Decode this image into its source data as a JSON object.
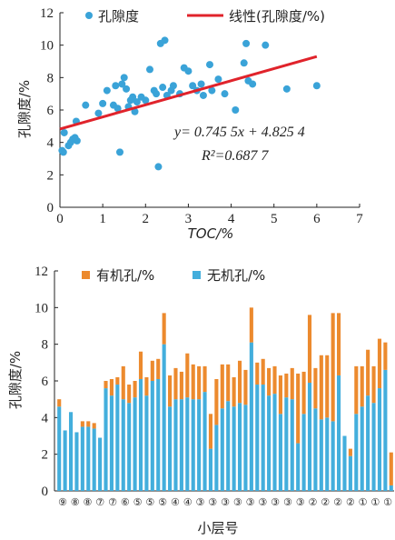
{
  "chart_data": [
    {
      "type": "scatter",
      "ylabel": "孔隙度/%",
      "xlabel": "TOC/%",
      "xlim": [
        0,
        7
      ],
      "ylim": [
        0,
        12
      ],
      "xticks": [
        "0",
        "1",
        "2",
        "3",
        "4",
        "5",
        "6",
        "7"
      ],
      "yticks": [
        "0",
        "2",
        "4",
        "6",
        "8",
        "10",
        "12"
      ],
      "legend": {
        "placement": "top",
        "items": [
          "孔隙度",
          "线性(孔隙度/%)"
        ]
      },
      "colors": {
        "points": "#3aa3d8",
        "trend": "#e0232b"
      },
      "annotation": {
        "equation": "y= 0.745 5x + 4.825 4",
        "r2": "R²=0.687 7"
      },
      "trend": {
        "slope": 0.7455,
        "intercept": 4.8254,
        "x_range": [
          0,
          6
        ]
      },
      "points": [
        [
          0.05,
          3.5
        ],
        [
          0.08,
          3.4
        ],
        [
          0.1,
          4.6
        ],
        [
          0.2,
          3.8
        ],
        [
          0.25,
          4.0
        ],
        [
          0.3,
          4.2
        ],
        [
          0.35,
          4.3
        ],
        [
          0.38,
          5.3
        ],
        [
          0.4,
          4.1
        ],
        [
          0.6,
          6.3
        ],
        [
          0.9,
          5.8
        ],
        [
          1.0,
          6.4
        ],
        [
          1.1,
          7.2
        ],
        [
          1.25,
          6.3
        ],
        [
          1.3,
          7.5
        ],
        [
          1.35,
          6.1
        ],
        [
          1.4,
          3.4
        ],
        [
          1.45,
          7.6
        ],
        [
          1.5,
          8.0
        ],
        [
          1.55,
          7.3
        ],
        [
          1.6,
          6.2
        ],
        [
          1.65,
          6.6
        ],
        [
          1.7,
          6.8
        ],
        [
          1.75,
          5.9
        ],
        [
          1.8,
          6.5
        ],
        [
          1.9,
          6.8
        ],
        [
          2.0,
          6.6
        ],
        [
          2.1,
          8.5
        ],
        [
          2.2,
          7.2
        ],
        [
          2.25,
          7.0
        ],
        [
          2.3,
          2.5
        ],
        [
          2.35,
          10.1
        ],
        [
          2.4,
          7.4
        ],
        [
          2.45,
          10.3
        ],
        [
          2.5,
          6.9
        ],
        [
          2.6,
          7.2
        ],
        [
          2.65,
          7.5
        ],
        [
          2.8,
          7.0
        ],
        [
          2.9,
          8.6
        ],
        [
          3.0,
          8.4
        ],
        [
          3.1,
          7.5
        ],
        [
          3.2,
          7.2
        ],
        [
          3.3,
          7.6
        ],
        [
          3.35,
          6.9
        ],
        [
          3.5,
          8.8
        ],
        [
          3.55,
          7.2
        ],
        [
          3.7,
          7.9
        ],
        [
          3.85,
          7.0
        ],
        [
          4.1,
          6.0
        ],
        [
          4.3,
          8.9
        ],
        [
          4.35,
          10.1
        ],
        [
          4.4,
          7.8
        ],
        [
          4.5,
          7.6
        ],
        [
          4.8,
          10.0
        ],
        [
          5.3,
          7.3
        ],
        [
          6.0,
          7.5
        ]
      ]
    },
    {
      "type": "bar",
      "stacked": true,
      "ylabel": "孔隙度/%",
      "xlabel": "小层号",
      "ylim": [
        0,
        12
      ],
      "yticks": [
        "0",
        "2",
        "4",
        "6",
        "8",
        "10",
        "12"
      ],
      "legend": {
        "placement": "top",
        "items": [
          "有机孔/%",
          "无机孔/%"
        ]
      },
      "colors": {
        "organic": "#ec8a2e",
        "inorganic": "#43aedc"
      },
      "category_labels": [
        "⑨",
        "⑧",
        "⑧",
        "⑦",
        "⑦",
        "⑥",
        "⑤",
        "⑤",
        "⑤",
        "④",
        "④",
        "③",
        "③",
        "③",
        "③",
        "③",
        "③",
        "③",
        "③",
        "③",
        "②",
        "②",
        "②",
        "②",
        "①",
        "①",
        "①"
      ],
      "series": [
        {
          "name": "无机孔/%",
          "values": [
            4.6,
            3.3,
            4.3,
            3.2,
            3.5,
            3.5,
            3.4,
            2.9,
            5.6,
            5.2,
            5.8,
            5.0,
            4.8,
            5.1,
            6.1,
            5.2,
            6.0,
            6.1,
            8.0,
            4.6,
            5.0,
            5.0,
            5.1,
            5.0,
            5.0,
            5.4,
            2.3,
            3.6,
            4.5,
            4.9,
            4.6,
            4.8,
            4.7,
            8.1,
            5.8,
            5.8,
            5.2,
            5.3,
            4.2,
            5.1,
            5.0,
            2.6,
            4.2,
            5.9,
            4.5,
            3.9,
            4.0,
            3.8,
            6.3,
            3.0,
            1.9,
            4.2,
            4.6,
            5.2,
            4.8,
            5.6,
            6.6,
            0.3
          ]
        },
        {
          "name": "有机孔/%",
          "values": [
            0.4,
            0.0,
            0.0,
            0.0,
            0.3,
            0.3,
            0.3,
            0.0,
            0.4,
            0.9,
            0.4,
            1.8,
            1.0,
            0.9,
            1.5,
            1.0,
            1.1,
            1.1,
            1.7,
            1.7,
            1.7,
            1.5,
            2.4,
            1.9,
            1.8,
            1.4,
            1.9,
            2.5,
            2.4,
            2.0,
            1.6,
            2.3,
            1.9,
            1.9,
            1.2,
            1.4,
            1.5,
            1.5,
            2.1,
            1.3,
            1.7,
            3.8,
            2.3,
            3.7,
            2.2,
            3.5,
            3.4,
            5.9,
            3.4,
            0.0,
            0.4,
            2.6,
            2.2,
            2.5,
            2.0,
            2.7,
            1.5,
            1.8
          ]
        }
      ]
    }
  ]
}
